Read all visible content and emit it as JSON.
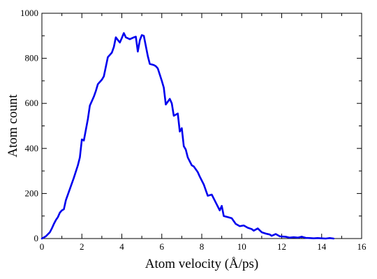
{
  "chart_data": {
    "type": "line",
    "title": "",
    "xlabel": "Atom velocity (Å/ps)",
    "ylabel": "Atom count",
    "xlim": [
      0,
      16
    ],
    "ylim": [
      0,
      1000
    ],
    "x_ticks": [
      0,
      2,
      4,
      6,
      8,
      10,
      12,
      14,
      16
    ],
    "y_ticks": [
      0,
      200,
      400,
      600,
      800,
      1000
    ],
    "grid": false,
    "line_color": "#0000ee",
    "series": [
      {
        "x": [
          0.0,
          0.2,
          0.4,
          0.5,
          0.6,
          0.7,
          0.8,
          0.9,
          1.0,
          1.1,
          1.2,
          1.4,
          1.6,
          1.8,
          1.9,
          2.0,
          2.1,
          2.3,
          2.4,
          2.6,
          2.7,
          2.8,
          3.0,
          3.1,
          3.3,
          3.5,
          3.6,
          3.7,
          3.9,
          4.0,
          4.1,
          4.2,
          4.4,
          4.6,
          4.7,
          4.8,
          4.9,
          5.0,
          5.1,
          5.3,
          5.4,
          5.6,
          5.7,
          5.8,
          6.0,
          6.1,
          6.2,
          6.4,
          6.5,
          6.6,
          6.8,
          6.9,
          7.0,
          7.1,
          7.2,
          7.3,
          7.5,
          7.6,
          7.8,
          7.9,
          8.1,
          8.3,
          8.5,
          8.7,
          8.9,
          9.0,
          9.1,
          9.3,
          9.5,
          9.7,
          9.9,
          10.1,
          10.3,
          10.5,
          10.6,
          10.8,
          11.0,
          11.2,
          11.4,
          11.5,
          11.7,
          11.9,
          12.2,
          12.4,
          12.6,
          12.8,
          13.0,
          13.2,
          13.4,
          13.6,
          13.8,
          14.0,
          14.2,
          14.4,
          14.6
        ],
        "y": [
          0,
          10,
          28,
          45,
          65,
          82,
          95,
          115,
          125,
          130,
          170,
          220,
          270,
          325,
          360,
          440,
          435,
          530,
          590,
          630,
          655,
          685,
          705,
          720,
          805,
          825,
          850,
          893,
          870,
          890,
          912,
          893,
          885,
          893,
          896,
          830,
          880,
          903,
          900,
          810,
          775,
          770,
          765,
          755,
          700,
          670,
          595,
          620,
          600,
          545,
          555,
          475,
          490,
          410,
          395,
          360,
          325,
          320,
          295,
          275,
          240,
          190,
          195,
          160,
          125,
          145,
          100,
          95,
          90,
          65,
          55,
          58,
          48,
          42,
          35,
          45,
          28,
          22,
          18,
          12,
          20,
          10,
          8,
          4,
          6,
          4,
          8,
          3,
          2,
          1,
          2,
          1,
          0,
          2,
          0
        ]
      }
    ]
  }
}
